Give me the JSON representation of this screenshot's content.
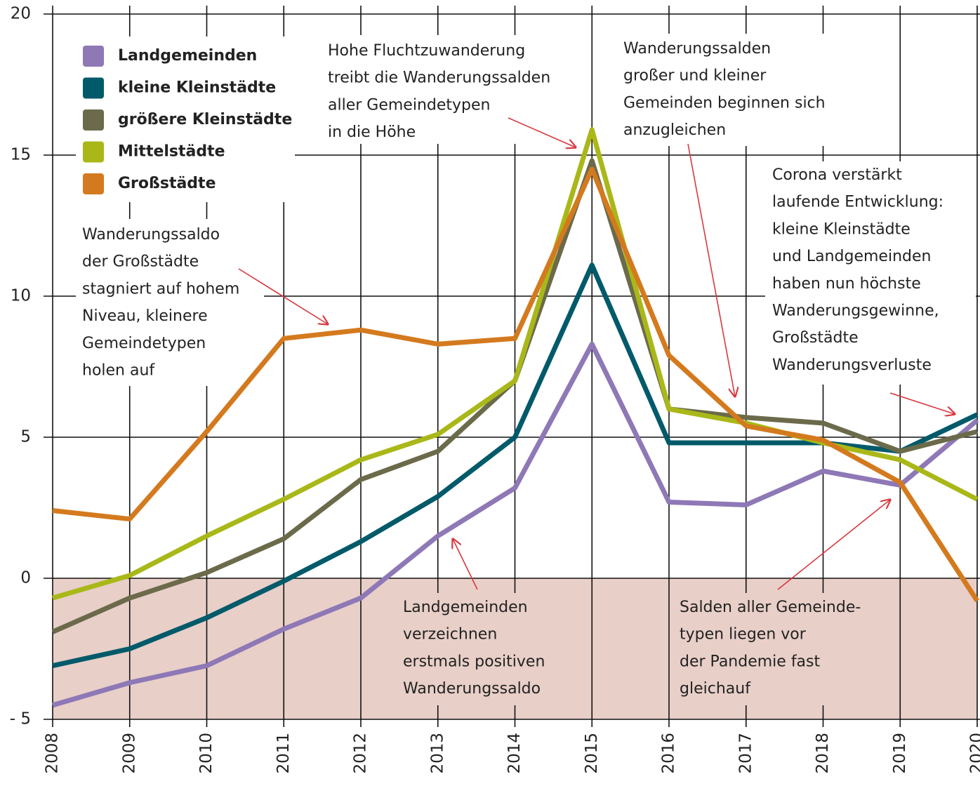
{
  "chart_data": {
    "type": "line",
    "x": [
      2008,
      2009,
      2010,
      2011,
      2012,
      2013,
      2014,
      2015,
      2016,
      2017,
      2018,
      2019,
      2020
    ],
    "xlim": [
      2008,
      2020
    ],
    "xticks": [
      2008,
      2009,
      2010,
      2011,
      2012,
      2013,
      2014,
      2015,
      2016,
      2017,
      2018,
      2019,
      2020
    ],
    "ylim": [
      -5,
      20
    ],
    "yticks": [
      {
        "value": -5,
        "label": "- 5"
      },
      0,
      5,
      10,
      15,
      20
    ],
    "grid": true,
    "legend": "upper left",
    "negative_shade": "#e8cfc8",
    "series": [
      {
        "name": "Landgemeinden",
        "color": "#8e78b6",
        "values": [
          -4.5,
          -3.7,
          -3.1,
          -1.8,
          -0.7,
          1.5,
          3.2,
          8.3,
          2.7,
          2.6,
          3.8,
          3.3,
          5.6
        ]
      },
      {
        "name": "kleine Kleinstädte",
        "color": "#005a6a",
        "values": [
          -3.1,
          -2.5,
          -1.4,
          -0.1,
          1.3,
          2.9,
          5.0,
          11.1,
          4.8,
          4.8,
          4.8,
          4.5,
          5.8
        ]
      },
      {
        "name": "größere Kleinstädte",
        "color": "#6b6a4a",
        "values": [
          -1.9,
          -0.7,
          0.2,
          1.4,
          3.5,
          4.5,
          7.0,
          14.8,
          6.0,
          5.7,
          5.5,
          4.5,
          5.2
        ]
      },
      {
        "name": "Mittelstädte",
        "color": "#a9b818",
        "values": [
          -0.7,
          0.1,
          1.5,
          2.8,
          4.2,
          5.1,
          7.0,
          15.9,
          6.0,
          5.5,
          4.8,
          4.2,
          2.8
        ]
      },
      {
        "name": "Großstädte",
        "color": "#d47a1e",
        "values": [
          2.4,
          2.1,
          5.2,
          8.5,
          8.8,
          8.3,
          8.5,
          14.5,
          7.9,
          5.4,
          4.9,
          3.4,
          -0.8
        ]
      }
    ],
    "annotations": [
      [
        "Hohe Fluchtzuwanderung",
        "treibt die Wanderungssalden",
        "aller Gemeindetypen",
        "in die Höhe"
      ],
      [
        "Wanderungssalden",
        "großer und kleiner",
        "Gemeinden beginnen sich",
        "anzugleichen"
      ],
      [
        "Corona verstärkt",
        "laufende Entwicklung:",
        "kleine Kleinstädte",
        "und Landgemeinden",
        "haben nun höchste",
        "Wanderungsgewinne,",
        "Großstädte",
        "Wanderungsverluste"
      ],
      [
        "Wanderungssaldo",
        "der Großstädte",
        "stagniert auf hohem",
        "Niveau, kleinere",
        "Gemeindetypen",
        "holen auf"
      ],
      [
        "Landgemeinden",
        "verzeichnen",
        "erstmals positiven",
        "Wanderungssaldo"
      ],
      [
        "Salden aller Gemeinde-",
        "typen liegen vor",
        "der Pandemie fast",
        "gleichauf"
      ]
    ]
  }
}
